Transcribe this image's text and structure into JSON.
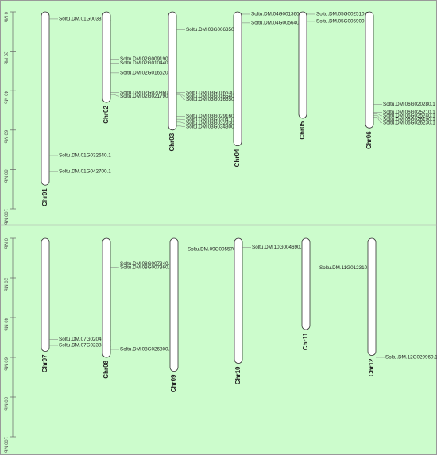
{
  "panels": [
    {
      "range": [
        0,
        100
      ],
      "ticks": [
        {
          "value": 0,
          "label": "0 Mb"
        },
        {
          "value": 20,
          "label": "20 Mb"
        },
        {
          "value": 40,
          "label": "40 Mb"
        },
        {
          "value": 60,
          "label": "60 Mb"
        },
        {
          "value": 80,
          "label": "80 Mb"
        },
        {
          "value": 100,
          "label": "100 Mb"
        }
      ],
      "chromosomes": [
        {
          "name": "Chr01",
          "length": 88,
          "genes": [
            {
              "name": "Soltu.DM.01G003810.1",
              "position": 3.6
            },
            {
              "name": "Soltu.DM.01G032640.1",
              "position": 73
            },
            {
              "name": "Soltu.DM.01G042700.1",
              "position": 81
            }
          ]
        },
        {
          "name": "Chr02",
          "length": 46,
          "genes": [
            {
              "name": "Soltu.DM.02G009190.1",
              "position": 24
            },
            {
              "name": "Soltu.DM.02G010440.1",
              "position": 26
            },
            {
              "name": "Soltu.DM.02G016520.1",
              "position": 31
            },
            {
              "name": "Soltu.DM.02G020860.1",
              "position": 41
            },
            {
              "name": "Soltu.DM.02G021790.2",
              "position": 42
            }
          ]
        },
        {
          "name": "Chr03",
          "length": 60,
          "genes": [
            {
              "name": "Soltu.DM.03G006350.1",
              "position": 9
            },
            {
              "name": "Soltu.DM.03G016530.1",
              "position": 41
            },
            {
              "name": "Soltu.DM.03G016540.1",
              "position": 41.5
            },
            {
              "name": "Soltu.DM.03G016550.1",
              "position": 42
            },
            {
              "name": "Soltu.DM.03G029160.1",
              "position": 53
            },
            {
              "name": "Soltu.DM.03G030410.1",
              "position": 54.5
            },
            {
              "name": "Soltu.DM.03G032930.1",
              "position": 56
            },
            {
              "name": "Soltu.DM.03G034300.2",
              "position": 58
            }
          ]
        },
        {
          "name": "Chr04",
          "length": 68,
          "genes": [
            {
              "name": "Soltu.DM.04G001360.1",
              "position": 1.2
            },
            {
              "name": "Soltu.DM.04G005640.1",
              "position": 5.6
            }
          ]
        },
        {
          "name": "Chr05",
          "length": 54,
          "genes": [
            {
              "name": "Soltu.DM.05G002510.2",
              "position": 1.2
            },
            {
              "name": "Soltu.DM.05G005900.1",
              "position": 4.8
            }
          ]
        },
        {
          "name": "Chr06",
          "length": 59,
          "genes": [
            {
              "name": "Soltu.DM.06G020280.1",
              "position": 47
            },
            {
              "name": "Soltu.DM.06G025210.1",
              "position": 51
            },
            {
              "name": "Soltu.DM.06G025240.1",
              "position": 51.5
            },
            {
              "name": "Soltu.DM.06G026190.1",
              "position": 52.5
            },
            {
              "name": "Soltu.DM.06G026230.1",
              "position": 53.5
            }
          ]
        }
      ]
    },
    {
      "range": [
        0,
        100
      ],
      "ticks": [
        {
          "value": 0,
          "label": "0 Mb"
        },
        {
          "value": 20,
          "label": "20 Mb"
        },
        {
          "value": 40,
          "label": "40 Mb"
        },
        {
          "value": 60,
          "label": "60 Mb"
        },
        {
          "value": 80,
          "label": "80 Mb"
        },
        {
          "value": 100,
          "label": "100 Mb"
        }
      ],
      "chromosomes": [
        {
          "name": "Chr07",
          "length": 57,
          "genes": [
            {
              "name": "Soltu.DM.07G020450.1",
              "position": 51
            },
            {
              "name": "Soltu.DM.07G023850.1",
              "position": 54
            }
          ]
        },
        {
          "name": "Chr08",
          "length": 60,
          "genes": [
            {
              "name": "Soltu.DM.08G007340.1",
              "position": 13
            },
            {
              "name": "Soltu.DM.08G007360.1",
              "position": 14.5
            },
            {
              "name": "Soltu.DM.08G026800.1",
              "position": 56
            }
          ]
        },
        {
          "name": "Chr09",
          "length": 67,
          "genes": [
            {
              "name": "Soltu.DM.09G005570.1",
              "position": 5.5
            }
          ]
        },
        {
          "name": "Chr10",
          "length": 63,
          "genes": [
            {
              "name": "Soltu.DM.10G004690.1",
              "position": 4.5
            }
          ]
        },
        {
          "name": "Chr11",
          "length": 46,
          "genes": [
            {
              "name": "Soltu.DM.11G012310.1",
              "position": 15
            }
          ]
        },
        {
          "name": "Chr12",
          "length": 59,
          "genes": [
            {
              "name": "Soltu.DM.12G029960.1",
              "position": 60
            }
          ]
        }
      ]
    }
  ]
}
